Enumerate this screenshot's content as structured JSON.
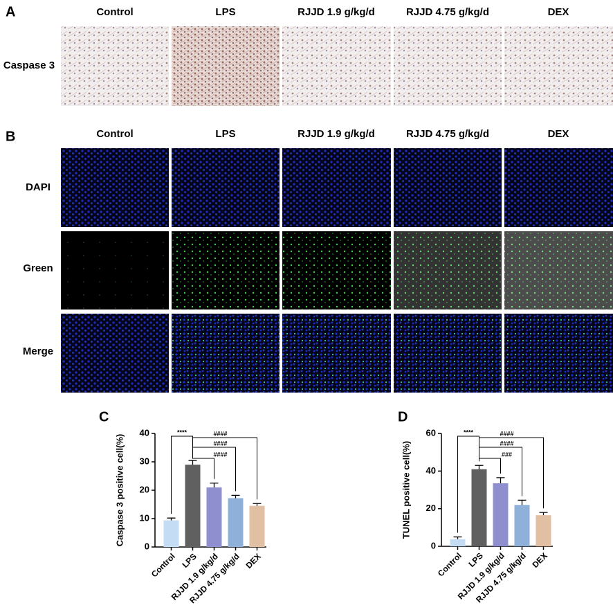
{
  "figure": {
    "panel_labels": [
      "A",
      "B",
      "C",
      "D"
    ],
    "columns": [
      "Control",
      "LPS",
      "RJJD 1.9 g/kg/d",
      "RJJD 4.75 g/kg/d",
      "DEX"
    ],
    "panel_a_rows": [
      "Caspase 3"
    ],
    "panel_b_rows": [
      "DAPI",
      "Green",
      "Merge"
    ]
  },
  "chart_data": [
    {
      "type": "bar",
      "y_label": "Caspase 3 positive cell(%)",
      "categories": [
        "Control",
        "LPS",
        "RJJD 1.9 g/kg/d",
        "RJJD 4.75 g/kg/d",
        "DEX"
      ],
      "values": [
        9.4,
        29,
        21,
        17.2,
        14.5
      ],
      "errors": [
        0.8,
        1.5,
        1.5,
        1,
        0.8
      ],
      "colors": [
        "#c5dcf5",
        "#606060",
        "#8f8fd0",
        "#8fb0d8",
        "#e0bfa3"
      ],
      "ylim": [
        0,
        40
      ],
      "yticks": [
        0,
        10,
        20,
        30,
        40
      ],
      "annotations": [
        "****",
        "####",
        "####",
        "####"
      ]
    },
    {
      "type": "bar",
      "y_label": "TUNEL positive cell(%)",
      "categories": [
        "Control",
        "LPS",
        "RJJD 1.9 g/kg/d",
        "RJJD 4.75 g/kg/d",
        "DEX"
      ],
      "values": [
        3.8,
        41,
        33.5,
        22,
        16.5
      ],
      "errors": [
        1.2,
        2,
        3,
        2.5,
        1.5
      ],
      "colors": [
        "#c5dcf5",
        "#606060",
        "#8f8fd0",
        "#8fb0d8",
        "#e0bfa3"
      ],
      "ylim": [
        0,
        60
      ],
      "yticks": [
        0,
        20,
        40,
        60
      ],
      "annotations": [
        "****",
        "####",
        "####",
        "###"
      ]
    }
  ]
}
